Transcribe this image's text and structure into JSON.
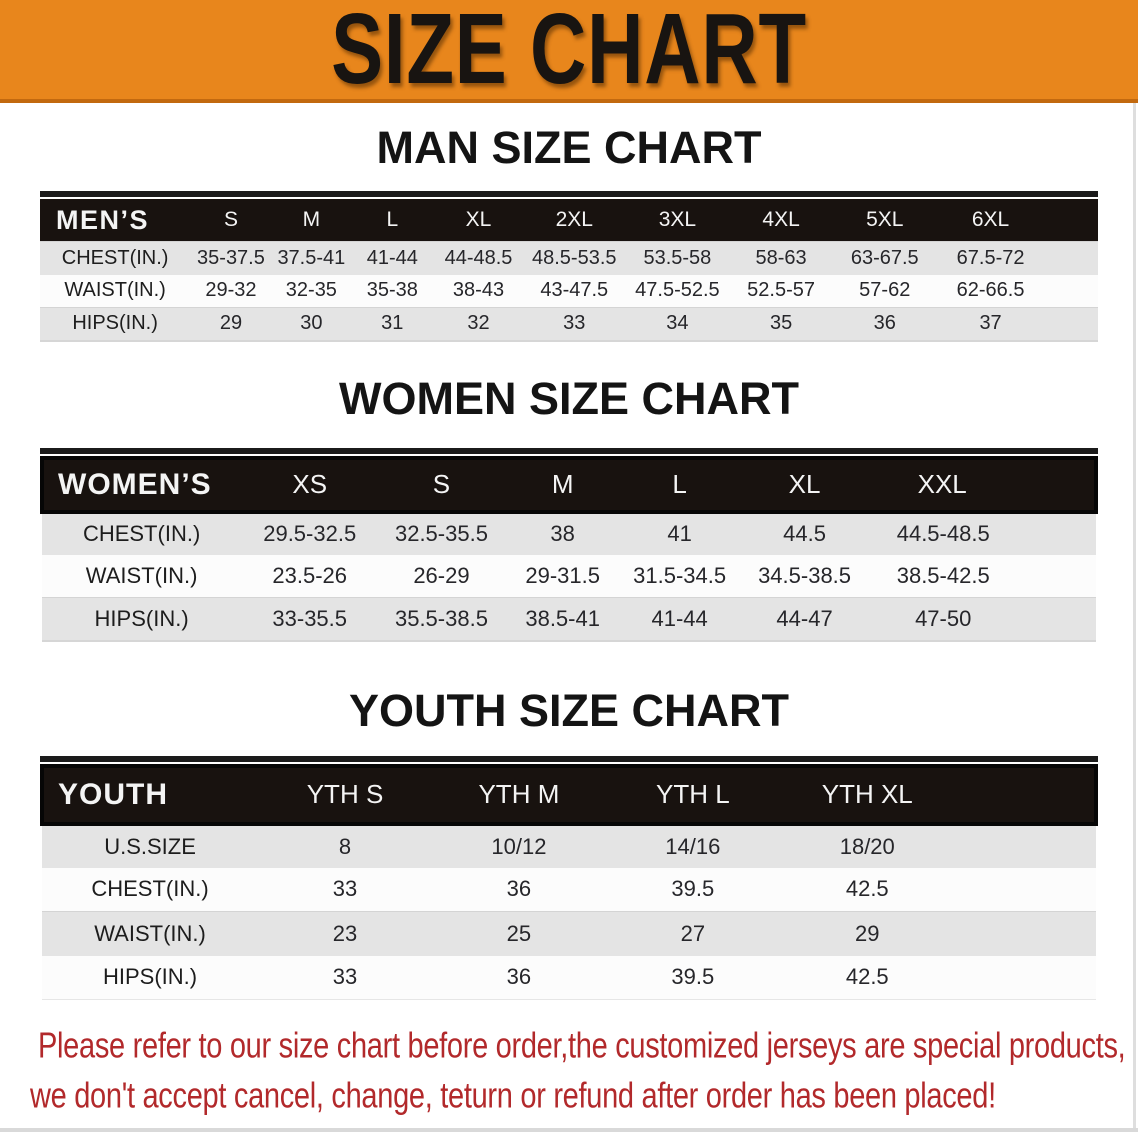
{
  "banner": {
    "title": "SIZE CHART",
    "bg_color": "#E8861C",
    "text_color": "#181411"
  },
  "sections": [
    {
      "heading": "MAN SIZE CHART",
      "table": {
        "header_label": "MEN’S",
        "columns": [
          "S",
          "M",
          "L",
          "XL",
          "2XL",
          "3XL",
          "4XL",
          "5XL",
          "6XL"
        ],
        "rows": [
          {
            "label": "CHEST(IN.)",
            "values": [
              "35-37.5",
              "37.5-41",
              "41-44",
              "44-48.5",
              "48.5-53.5",
              "53.5-58",
              "58-63",
              "63-67.5",
              "67.5-72"
            ]
          },
          {
            "label": "WAIST(IN.)",
            "values": [
              "29-32",
              "32-35",
              "35-38",
              "38-43",
              "43-47.5",
              "47.5-52.5",
              "52.5-57",
              "57-62",
              "62-66.5"
            ]
          },
          {
            "label": "HIPS(IN.)",
            "values": [
              "29",
              "30",
              "31",
              "32",
              "33",
              "34",
              "35",
              "36",
              "37"
            ]
          }
        ]
      }
    },
    {
      "heading": "WOMEN SIZE CHART",
      "table": {
        "header_label": "WOMEN’S",
        "columns": [
          "XS",
          "S",
          "M",
          "L",
          "XL",
          "XXL"
        ],
        "rows": [
          {
            "label": "CHEST(IN.)",
            "values": [
              "29.5-32.5",
              "32.5-35.5",
              "38",
              "41",
              "44.5",
              "44.5-48.5"
            ]
          },
          {
            "label": "WAIST(IN.)",
            "values": [
              "23.5-26",
              "26-29",
              "29-31.5",
              "31.5-34.5",
              "34.5-38.5",
              "38.5-42.5"
            ]
          },
          {
            "label": "HIPS(IN.)",
            "values": [
              "33-35.5",
              "35.5-38.5",
              "38.5-41",
              "41-44",
              "44-47",
              "47-50"
            ]
          }
        ]
      }
    },
    {
      "heading": "YOUTH SIZE CHART",
      "table": {
        "header_label": "YOUTH",
        "columns": [
          "YTH S",
          "YTH M",
          "YTH L",
          "YTH XL"
        ],
        "rows": [
          {
            "label": "U.S.SIZE",
            "values": [
              "8",
              "10/12",
              "14/16",
              "18/20"
            ]
          },
          {
            "label": "CHEST(IN.)",
            "values": [
              "33",
              "36",
              "39.5",
              "42.5"
            ]
          },
          {
            "label": "WAIST(IN.)",
            "values": [
              "23",
              "25",
              "27",
              "29"
            ]
          },
          {
            "label": "HIPS(IN.)",
            "values": [
              "33",
              "36",
              "39.5",
              "42.5"
            ]
          }
        ]
      }
    }
  ],
  "footer": {
    "line1": "Please refer to our size chart before order,the customized jerseys are special products,",
    "line2": "we don't accept cancel, change, teturn or refund after order has been placed!",
    "text_color": "#B2292B"
  }
}
